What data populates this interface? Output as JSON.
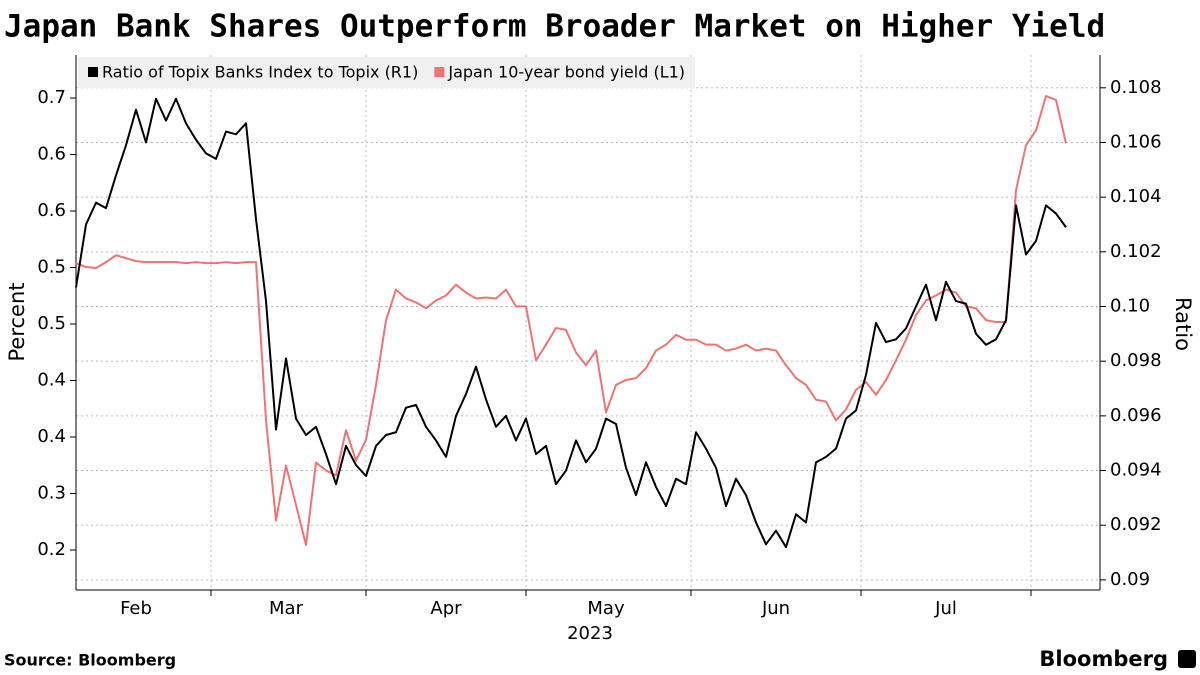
{
  "chart_data": {
    "type": "line",
    "title": "Japan Bank Shares Outperform Broader Market on Higher Yield",
    "ylabel": "Percent",
    "y2label": "Ratio",
    "xlabel": "2023",
    "source": "Source: Bloomberg",
    "brand": "Bloomberg",
    "grid": true,
    "legend": "top-left",
    "categories": [
      null,
      null,
      null,
      null,
      null,
      null,
      "Feb",
      null,
      null,
      null,
      null,
      null,
      null,
      null,
      null,
      null,
      null,
      null,
      null,
      null,
      null,
      "Mar",
      null,
      null,
      null,
      null,
      null,
      null,
      null,
      null,
      null,
      null,
      null,
      null,
      null,
      null,
      null,
      "Apr",
      null,
      null,
      null,
      null,
      null,
      null,
      null,
      null,
      null,
      null,
      null,
      null,
      null,
      null,
      null,
      "May",
      null,
      null,
      null,
      null,
      null,
      null,
      null,
      null,
      null,
      null,
      null,
      null,
      null,
      null,
      null,
      null,
      "Jun",
      null,
      null,
      null,
      null,
      null,
      null,
      null,
      null,
      null,
      null,
      null,
      null,
      null,
      null,
      null,
      null,
      "Jul",
      null,
      null,
      null,
      null,
      null,
      null,
      null,
      null,
      null,
      null,
      null,
      null
    ],
    "ylim": [
      0.1993,
      0.7438
    ],
    "yticks": [
      0.7,
      {
        "value": 0.6425,
        "label": "0.6"
      },
      {
        "value": 0.585,
        "label": "0.6"
      },
      {
        "value": 0.5275,
        "label": "0.5"
      },
      {
        "value": 0.47,
        "label": "0.5"
      },
      {
        "value": 0.4125,
        "label": "0.4"
      },
      {
        "value": 0.355,
        "label": "0.4"
      },
      {
        "value": 0.2975,
        "label": "0.3"
      },
      {
        "value": 0.24,
        "label": "0.2"
      }
    ],
    "y2lim": [
      0.08963,
      0.1092
    ],
    "y2ticks": [
      0.09,
      0.092,
      0.094,
      0.096,
      0.098,
      {
        "value": 0.1,
        "label": "0.10"
      },
      0.102,
      0.104,
      0.106,
      0.108
    ],
    "series": [
      {
        "name": "Ratio of Topix Banks Index to Topix (R1)",
        "color": "#000000",
        "axis": "y2",
        "values": [
          0.1007,
          0.103,
          0.1038,
          0.1036,
          0.1048,
          0.1059,
          0.1072,
          0.106,
          0.1076,
          0.1068,
          0.1076,
          0.1067,
          0.1061,
          0.1056,
          0.1054,
          0.1064,
          0.1063,
          0.1067,
          0.1032,
          0.1002,
          0.0955,
          0.0981,
          0.0959,
          0.0953,
          0.0956,
          0.0946,
          0.0935,
          0.0949,
          0.0942,
          0.0938,
          0.0949,
          0.0953,
          0.0954,
          0.0963,
          0.0964,
          0.0956,
          0.0951,
          0.0945,
          0.096,
          0.0968,
          0.0978,
          0.0966,
          0.0956,
          0.096,
          0.0951,
          0.0959,
          0.0946,
          0.0949,
          0.0935,
          0.094,
          0.0951,
          0.0943,
          0.0948,
          0.0959,
          0.0957,
          0.0941,
          0.0931,
          0.0943,
          0.0934,
          0.0927,
          0.0937,
          0.0935,
          0.0954,
          0.0948,
          0.0941,
          0.0927,
          0.0937,
          0.0931,
          0.0921,
          0.0913,
          0.0918,
          0.0912,
          0.0924,
          0.0921,
          0.0943,
          0.0945,
          0.0948,
          0.0959,
          0.0962,
          0.0975,
          0.0994,
          0.0987,
          0.0988,
          0.0992,
          0.1,
          0.1008,
          0.0995,
          0.1009,
          0.1002,
          0.1001,
          0.099,
          0.0986,
          0.0988,
          0.0995,
          0.1037,
          0.1019,
          0.1024,
          0.1037,
          0.1034,
          0.1029
        ]
      },
      {
        "name": "Japan 10-year bond yield (L1)",
        "color": "#f07272",
        "axis": "y",
        "values": [
          0.532,
          0.528,
          0.527,
          0.533,
          0.54,
          0.537,
          0.534,
          0.533,
          0.533,
          0.533,
          0.533,
          0.532,
          0.533,
          0.532,
          0.532,
          0.533,
          0.532,
          0.533,
          0.533,
          0.372,
          0.27,
          0.326,
          0.286,
          0.245,
          0.329,
          0.321,
          0.316,
          0.362,
          0.331,
          0.352,
          0.408,
          0.474,
          0.505,
          0.496,
          0.492,
          0.486,
          0.494,
          0.499,
          0.51,
          0.502,
          0.496,
          0.497,
          0.496,
          0.505,
          0.488,
          0.488,
          0.433,
          0.449,
          0.466,
          0.464,
          0.441,
          0.428,
          0.443,
          0.38,
          0.408,
          0.413,
          0.415,
          0.425,
          0.443,
          0.449,
          0.459,
          0.454,
          0.454,
          0.449,
          0.449,
          0.443,
          0.445,
          0.449,
          0.443,
          0.445,
          0.443,
          0.428,
          0.415,
          0.408,
          0.393,
          0.391,
          0.372,
          0.383,
          0.403,
          0.411,
          0.398,
          0.413,
          0.433,
          0.454,
          0.479,
          0.494,
          0.499,
          0.505,
          0.502,
          0.488,
          0.486,
          0.474,
          0.472,
          0.472,
          0.606,
          0.652,
          0.667,
          0.702,
          0.698,
          0.654
        ]
      }
    ]
  }
}
